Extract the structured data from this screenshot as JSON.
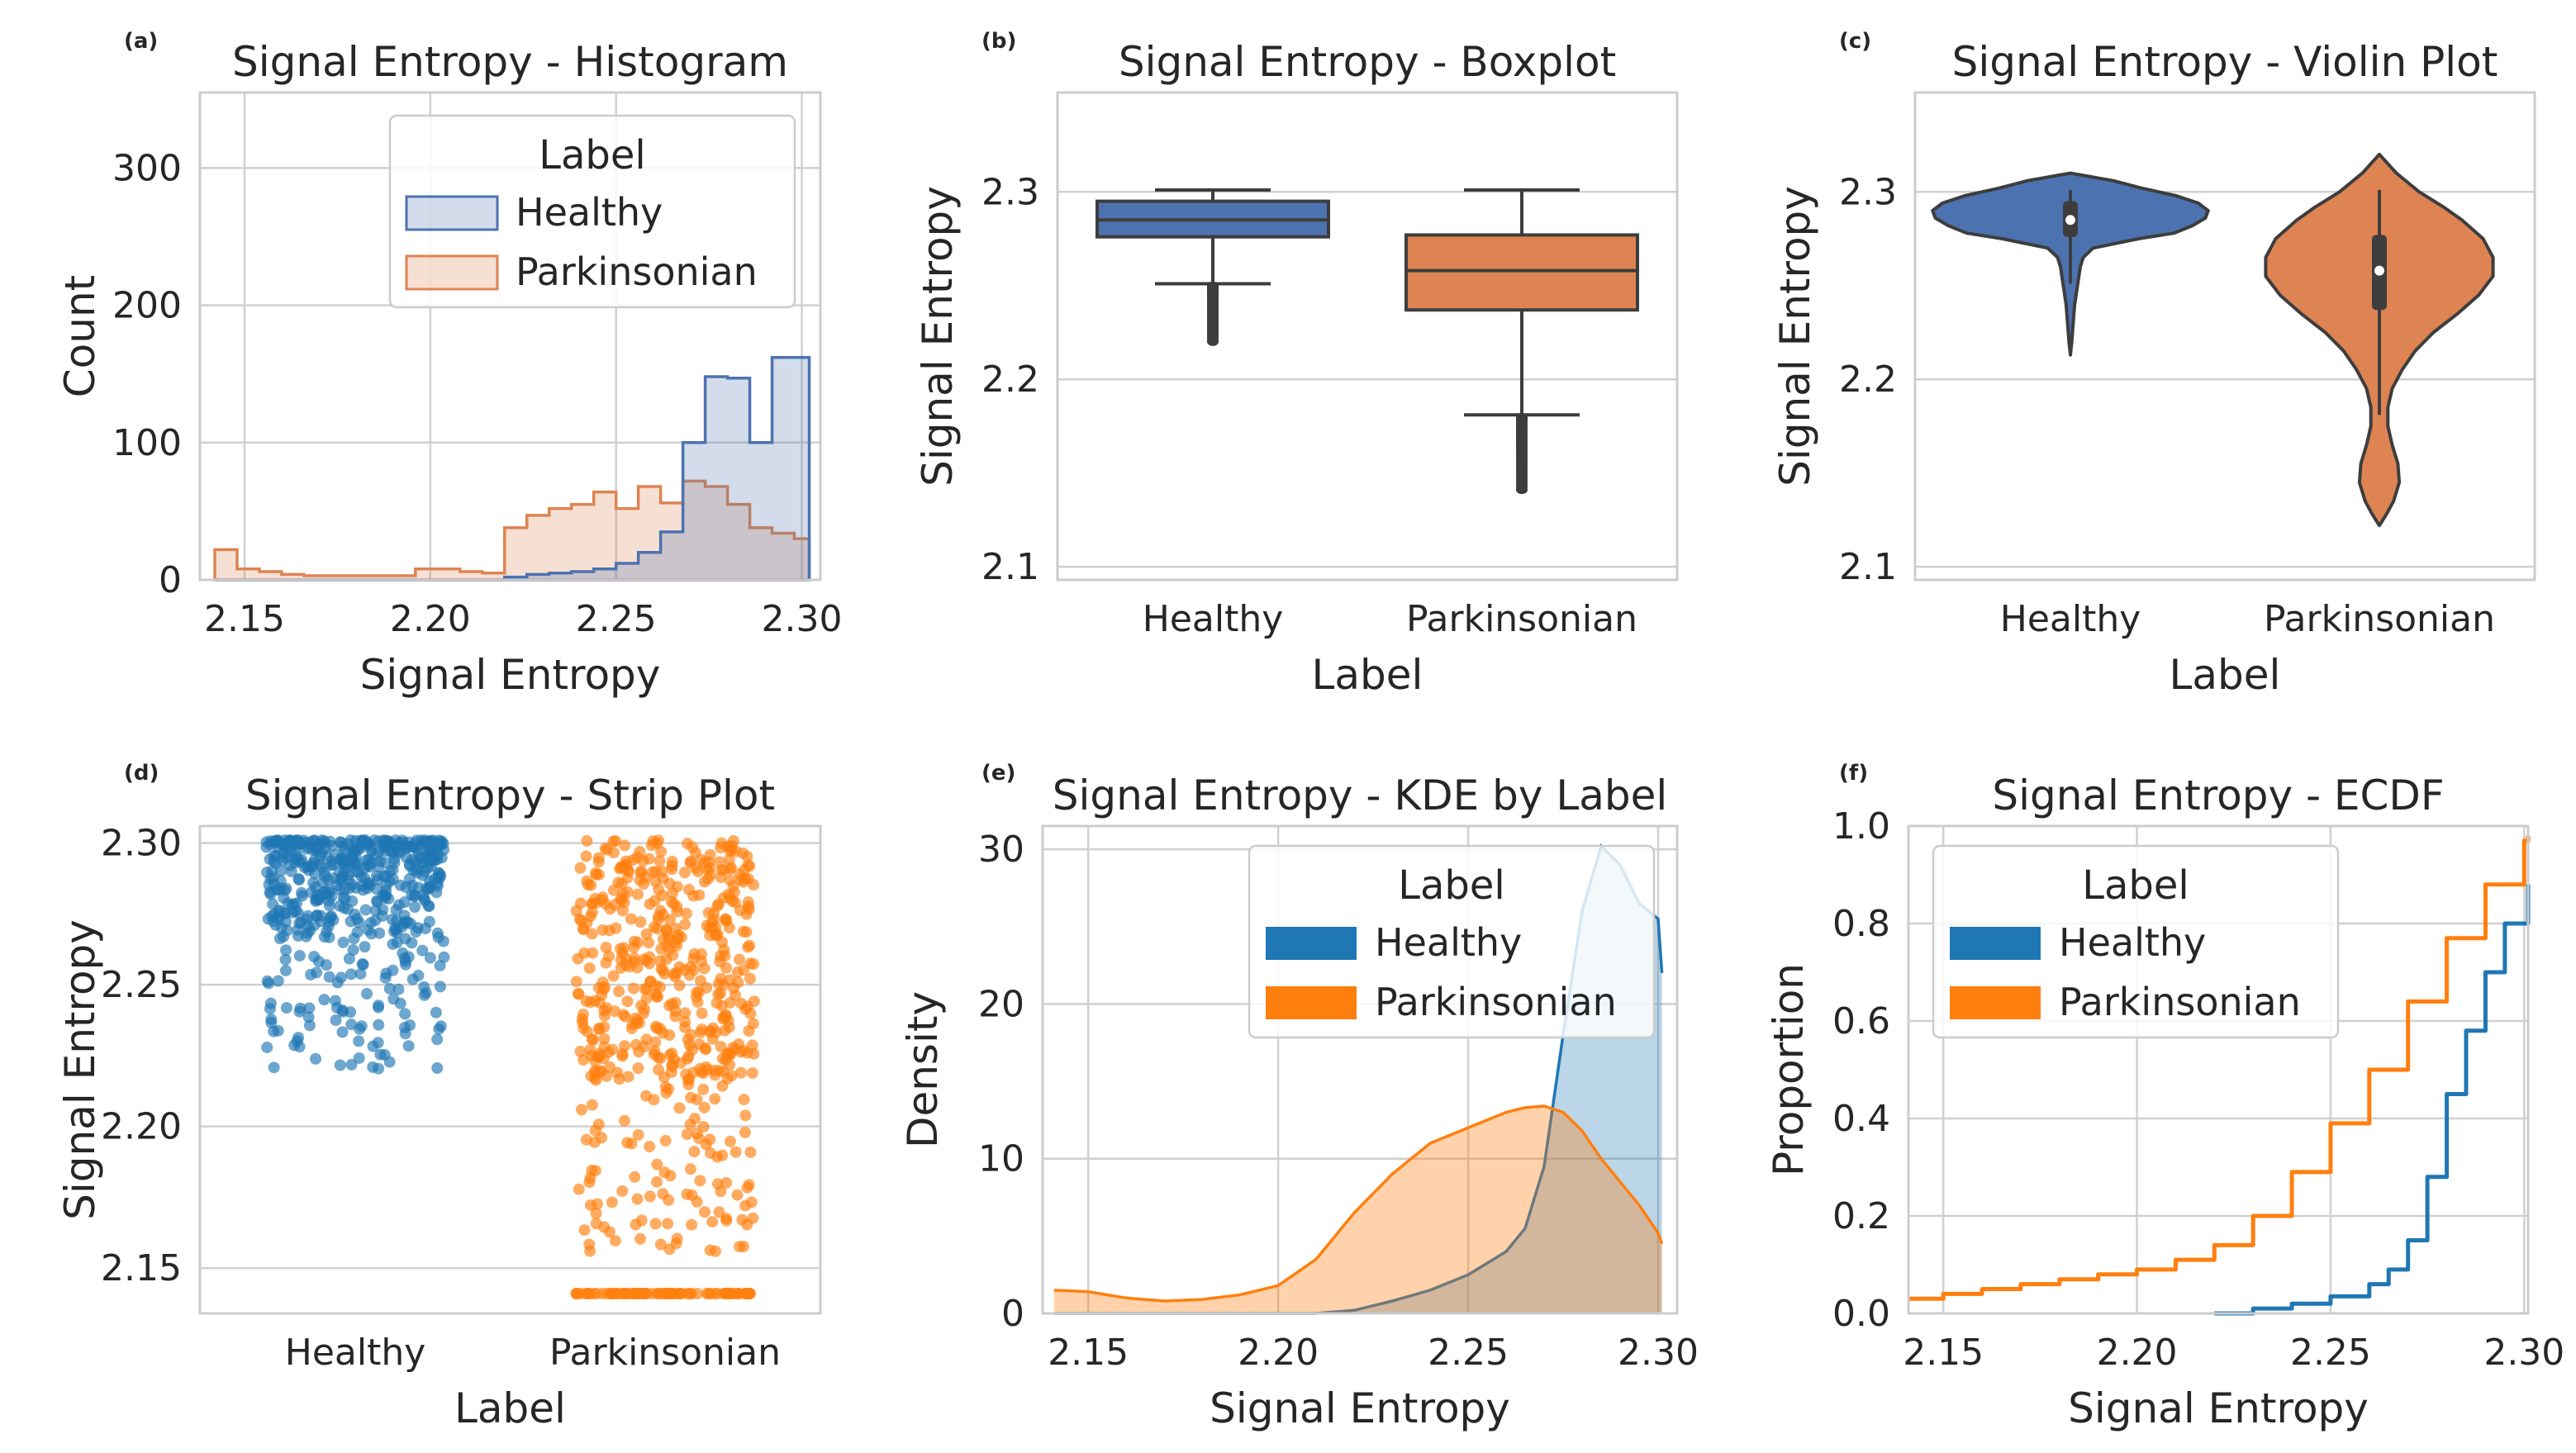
{
  "colors": {
    "healthy_deep": "#4c72b0",
    "parkinsonian_deep": "#dd8452",
    "healthy_tab": "#1f77b4",
    "parkinsonian_tab": "#ff7f0e",
    "box_line": "#3d3d3d"
  },
  "chart_data": [
    {
      "panel": "(a)",
      "type": "histogram",
      "title": "Signal Entropy - Histogram",
      "xlabel": "Signal Entropy",
      "ylabel": "Count",
      "xlim": [
        2.138,
        2.305
      ],
      "ylim": [
        0,
        355
      ],
      "xticks": [
        2.15,
        2.2,
        2.25,
        2.3
      ],
      "xtick_labels": [
        "2.15",
        "2.20",
        "2.25",
        "2.30"
      ],
      "yticks": [
        0,
        100,
        200,
        300
      ],
      "ytick_labels": [
        "0",
        "100",
        "200",
        "300"
      ],
      "legend": {
        "title": "Label",
        "position": "upper-center",
        "entries": [
          "Healthy",
          "Parkinsonian"
        ]
      },
      "bin_edges": [
        2.142,
        2.148,
        2.154,
        2.16,
        2.166,
        2.172,
        2.178,
        2.184,
        2.19,
        2.196,
        2.202,
        2.208,
        2.214,
        2.22,
        2.226,
        2.232,
        2.238,
        2.244,
        2.25,
        2.256,
        2.262,
        2.268,
        2.274,
        2.28,
        2.286,
        2.292,
        2.298,
        2.302
      ],
      "series": [
        {
          "name": "Parkinsonian",
          "values": [
            22,
            8,
            6,
            4,
            3,
            3,
            3,
            3,
            3,
            8,
            8,
            6,
            5,
            38,
            47,
            52,
            55,
            64,
            52,
            68,
            56,
            72,
            68,
            55,
            38,
            34,
            30
          ]
        },
        {
          "name": "Healthy",
          "values": [
            0,
            0,
            0,
            0,
            0,
            0,
            0,
            0,
            0,
            0,
            0,
            0,
            0,
            2,
            4,
            5,
            6,
            8,
            12,
            20,
            35,
            100,
            148,
            147,
            100,
            162,
            162
          ]
        }
      ]
    },
    {
      "panel": "(b)",
      "type": "boxplot",
      "title": "Signal Entropy - Boxplot",
      "xlabel": "Label",
      "ylabel": "Signal Entropy",
      "ylim": [
        2.093,
        2.353
      ],
      "yticks": [
        2.1,
        2.2,
        2.3
      ],
      "ytick_labels": [
        "2.1",
        "2.2",
        "2.3"
      ],
      "categories": [
        "Healthy",
        "Parkinsonian"
      ],
      "boxes": [
        {
          "name": "Healthy",
          "whisker_low": 2.251,
          "q1": 2.276,
          "median": 2.285,
          "q3": 2.295,
          "whisker_high": 2.301,
          "outlier_min": 2.22,
          "outlier_max": 2.25
        },
        {
          "name": "Parkinsonian",
          "whisker_low": 2.181,
          "q1": 2.237,
          "median": 2.258,
          "q3": 2.277,
          "whisker_high": 2.301,
          "outlier_min": 2.141,
          "outlier_max": 2.18
        }
      ]
    },
    {
      "panel": "(c)",
      "type": "violin",
      "title": "Signal Entropy - Violin Plot",
      "xlabel": "Label",
      "ylabel": "Signal Entropy",
      "ylim": [
        2.093,
        2.353
      ],
      "yticks": [
        2.1,
        2.2,
        2.3
      ],
      "ytick_labels": [
        "2.1",
        "2.2",
        "2.3"
      ],
      "categories": [
        "Healthy",
        "Parkinsonian"
      ],
      "violins": [
        {
          "name": "Healthy",
          "profile_y": [
            2.213,
            2.22,
            2.23,
            2.24,
            2.25,
            2.26,
            2.265,
            2.27,
            2.275,
            2.278,
            2.282,
            2.286,
            2.29,
            2.294,
            2.298,
            2.302,
            2.306,
            2.31
          ],
          "profile_halfwidth": [
            0.0,
            0.01,
            0.02,
            0.03,
            0.05,
            0.07,
            0.09,
            0.16,
            0.48,
            0.73,
            0.86,
            0.95,
            0.97,
            0.9,
            0.74,
            0.5,
            0.3,
            0.0
          ],
          "q1": 2.276,
          "median": 2.285,
          "q3": 2.295,
          "whisker_low": 2.251,
          "whisker_high": 2.301
        },
        {
          "name": "Parkinsonian",
          "profile_y": [
            2.122,
            2.128,
            2.135,
            2.145,
            2.155,
            2.165,
            2.175,
            2.185,
            2.195,
            2.205,
            2.215,
            2.225,
            2.235,
            2.245,
            2.255,
            2.265,
            2.275,
            2.285,
            2.292,
            2.3,
            2.31,
            2.32
          ],
          "profile_halfwidth": [
            0.0,
            0.05,
            0.1,
            0.14,
            0.13,
            0.09,
            0.06,
            0.06,
            0.09,
            0.16,
            0.25,
            0.38,
            0.55,
            0.7,
            0.8,
            0.8,
            0.73,
            0.58,
            0.45,
            0.28,
            0.12,
            0.0
          ],
          "q1": 2.237,
          "median": 2.258,
          "q3": 2.277,
          "whisker_low": 2.181,
          "whisker_high": 2.301
        }
      ]
    },
    {
      "panel": "(d)",
      "type": "scatter",
      "title": "Signal Entropy - Strip Plot",
      "xlabel": "Label",
      "ylabel": "Signal Entropy",
      "ylim": [
        2.134,
        2.306
      ],
      "yticks": [
        2.15,
        2.2,
        2.25,
        2.3
      ],
      "ytick_labels": [
        "2.15",
        "2.20",
        "2.25",
        "2.30"
      ],
      "categories": [
        "Healthy",
        "Parkinsonian"
      ],
      "strip": [
        {
          "name": "Healthy",
          "range": [
            2.22,
            2.301
          ],
          "concentration": "dense above 2.265"
        },
        {
          "name": "Parkinsonian",
          "range": [
            2.141,
            2.301
          ],
          "concentration": "dense above 2.22, row of points at 2.141"
        }
      ]
    },
    {
      "panel": "(e)",
      "type": "area",
      "title": "Signal Entropy - KDE by Label",
      "xlabel": "Signal Entropy",
      "ylabel": "Density",
      "xlim": [
        2.138,
        2.305
      ],
      "ylim": [
        0,
        31.5
      ],
      "xticks": [
        2.15,
        2.2,
        2.25,
        2.3
      ],
      "xtick_labels": [
        "2.15",
        "2.20",
        "2.25",
        "2.30"
      ],
      "yticks": [
        0,
        10,
        20,
        30
      ],
      "ytick_labels": [
        "0",
        "10",
        "20",
        "30"
      ],
      "legend": {
        "title": "Label",
        "position": "upper-right",
        "entries": [
          "Healthy",
          "Parkinsonian"
        ]
      },
      "x": [
        2.141,
        2.15,
        2.16,
        2.17,
        2.18,
        2.19,
        2.2,
        2.21,
        2.22,
        2.23,
        2.24,
        2.25,
        2.26,
        2.265,
        2.27,
        2.275,
        2.28,
        2.285,
        2.29,
        2.295,
        2.3,
        2.301
      ],
      "series": [
        {
          "name": "Healthy",
          "values": [
            0,
            0,
            0,
            0,
            0,
            0,
            0,
            0,
            0.2,
            0.8,
            1.5,
            2.5,
            4.0,
            5.5,
            9.5,
            18.0,
            26.0,
            30.2,
            29.0,
            26.5,
            25.5,
            22.0
          ]
        },
        {
          "name": "Parkinsonian",
          "values": [
            1.5,
            1.4,
            1.0,
            0.8,
            0.9,
            1.2,
            1.8,
            3.5,
            6.5,
            9.0,
            11.0,
            12.0,
            13.0,
            13.3,
            13.4,
            13.0,
            11.8,
            10.0,
            8.5,
            7.0,
            5.2,
            4.5
          ]
        }
      ]
    },
    {
      "panel": "(f)",
      "type": "line",
      "title": "Signal Entropy - ECDF",
      "xlabel": "Signal Entropy",
      "ylabel": "Proportion",
      "xlim": [
        2.141,
        2.301
      ],
      "ylim": [
        0,
        1.0
      ],
      "xticks": [
        2.15,
        2.2,
        2.25,
        2.3
      ],
      "xtick_labels": [
        "2.15",
        "2.20",
        "2.25",
        "2.30"
      ],
      "yticks": [
        0.0,
        0.2,
        0.4,
        0.6,
        0.8,
        1.0
      ],
      "ytick_labels": [
        "0.0",
        "0.2",
        "0.4",
        "0.6",
        "0.8",
        "1.0"
      ],
      "legend": {
        "title": "Label",
        "position": "upper-left",
        "entries": [
          "Healthy",
          "Parkinsonian"
        ]
      },
      "series": [
        {
          "name": "Healthy",
          "x": [
            2.22,
            2.23,
            2.24,
            2.25,
            2.26,
            2.265,
            2.27,
            2.275,
            2.28,
            2.285,
            2.29,
            2.295,
            2.301
          ],
          "y": [
            0.0,
            0.01,
            0.02,
            0.035,
            0.06,
            0.09,
            0.15,
            0.28,
            0.45,
            0.58,
            0.7,
            0.8,
            0.88
          ]
        },
        {
          "name": "Parkinsonian",
          "x": [
            2.141,
            2.15,
            2.16,
            2.17,
            2.18,
            2.19,
            2.2,
            2.21,
            2.22,
            2.23,
            2.24,
            2.25,
            2.26,
            2.27,
            2.28,
            2.29,
            2.3,
            2.301
          ],
          "y": [
            0.03,
            0.04,
            0.05,
            0.06,
            0.07,
            0.08,
            0.09,
            0.11,
            0.14,
            0.2,
            0.29,
            0.39,
            0.5,
            0.64,
            0.77,
            0.88,
            0.97,
            0.98
          ]
        }
      ]
    }
  ]
}
